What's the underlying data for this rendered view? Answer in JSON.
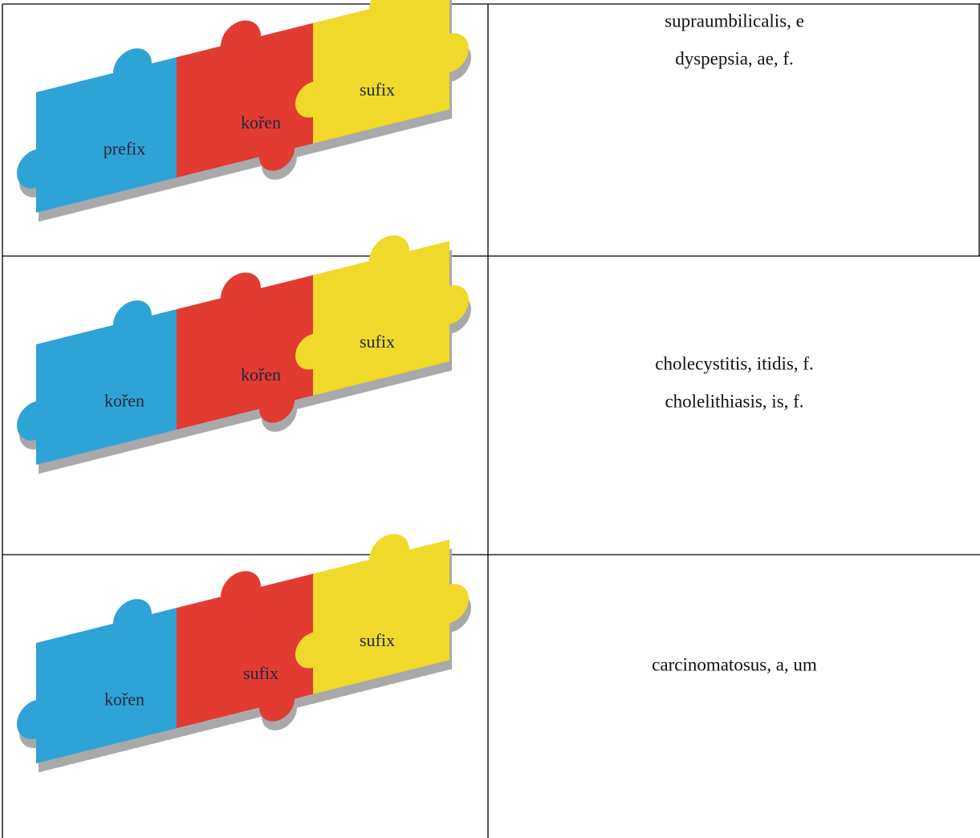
{
  "rows": [
    {
      "puzzle": [
        "prefix",
        "kořen",
        "sufix"
      ],
      "terms": [
        "supraumbilicalis, e",
        "dyspepsia, ae, f."
      ]
    },
    {
      "puzzle": [
        "kořen",
        "kořen",
        "sufix"
      ],
      "terms": [
        "cholecystitis, itidis, f.",
        "cholelithiasis, is, f."
      ]
    },
    {
      "puzzle": [
        "kořen",
        "sufix",
        "sufix"
      ],
      "terms": [
        "carcinomatosus, a, um"
      ]
    }
  ]
}
